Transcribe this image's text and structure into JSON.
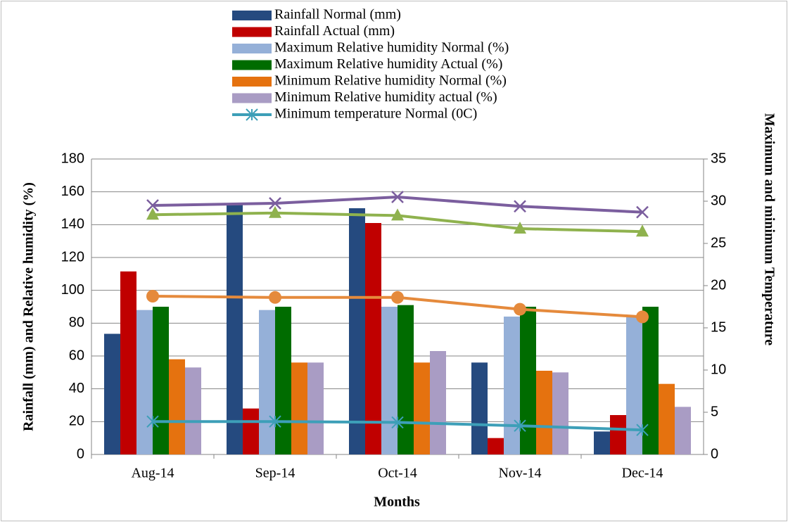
{
  "chart_data": {
    "type": "bar",
    "x_label": "Months",
    "y_label": "Rainfall (mm) and Relative humidity (%)",
    "y2_label": "Maximum and minimum Temperature",
    "categories": [
      "Aug-14",
      "Sep-14",
      "Oct-14",
      "Nov-14",
      "Dec-14"
    ],
    "ylim": [
      0,
      180
    ],
    "yticks": [
      0,
      20,
      40,
      60,
      80,
      100,
      120,
      140,
      160,
      180
    ],
    "y2lim": [
      0,
      35
    ],
    "y2ticks": [
      0,
      5,
      10,
      15,
      20,
      25,
      30,
      35
    ],
    "series": [
      {
        "name": "Rainfall Normal (mm)",
        "color": "#254a7f",
        "values": [
          73.5,
          152,
          150,
          56,
          14
        ]
      },
      {
        "name": "Rainfall Actual (mm)",
        "color": "#c00000",
        "values": [
          111.5,
          28,
          141,
          10,
          24
        ]
      },
      {
        "name": "Maximum Relative humidity Normal (%)",
        "color": "#95b0d8",
        "values": [
          88,
          88,
          90,
          84,
          84
        ]
      },
      {
        "name": "Maximum Relative humidity Actual (%)",
        "color": "#006c00",
        "values": [
          90,
          90,
          91,
          90,
          90
        ]
      },
      {
        "name": "Minimum Relative humidity Normal (%)",
        "color": "#e5720f",
        "values": [
          58,
          56,
          56,
          51,
          43
        ]
      },
      {
        "name": "Minimum Relative humidity actual (%)",
        "color": "#a99cc4",
        "values": [
          53,
          56,
          63,
          50,
          29
        ]
      },
      {
        "name": "Minimum temperature Normal (0C)",
        "type": "line",
        "axis": "y2",
        "marker": "asterisk",
        "color": "#3d9fb8",
        "values": [
          3.9,
          3.9,
          3.8,
          3.4,
          2.9
        ]
      },
      {
        "type": "line",
        "axis": "y2",
        "marker": "x",
        "color": "#7b5e9e",
        "values": [
          29.5,
          29.75,
          30.5,
          29.4,
          28.7
        ]
      },
      {
        "type": "line",
        "axis": "y2",
        "marker": "triangle",
        "color": "#8fb24e",
        "values": [
          28.4,
          28.6,
          28.3,
          26.75,
          26.4
        ]
      },
      {
        "type": "line",
        "axis": "y2",
        "marker": "circle",
        "color": "#e58a3c",
        "values": [
          18.75,
          18.6,
          18.6,
          17.2,
          16.3
        ]
      }
    ]
  }
}
